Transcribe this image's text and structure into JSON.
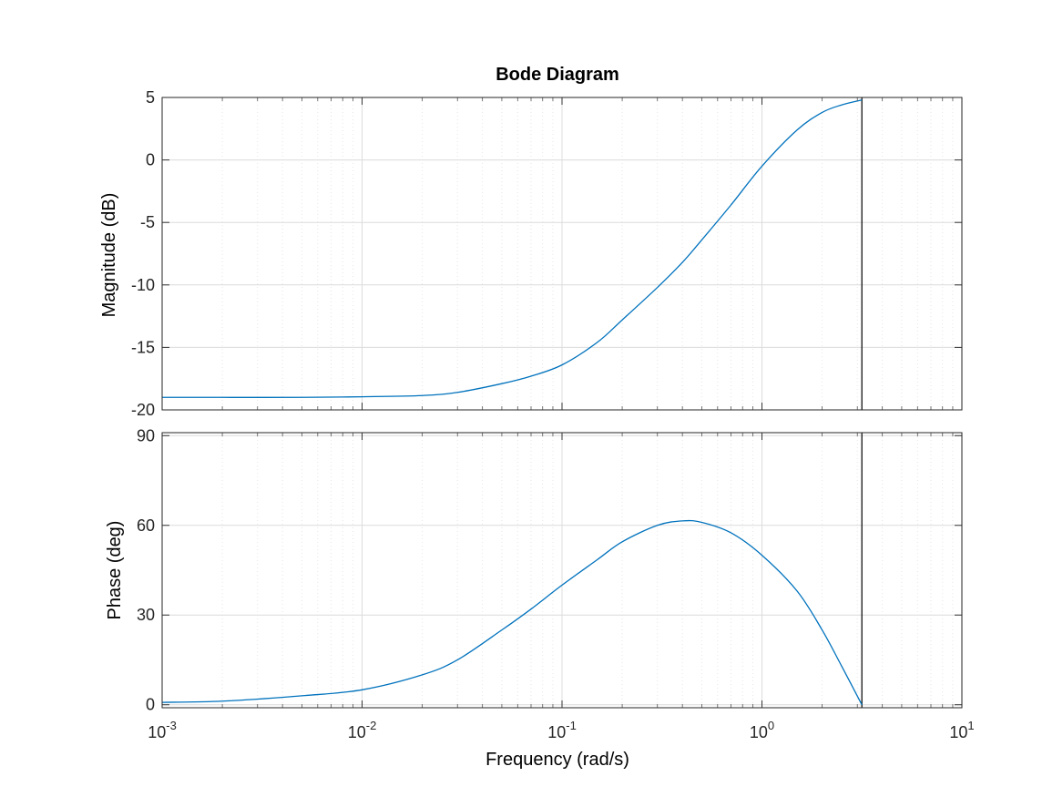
{
  "chart_data": {
    "type": "line",
    "title": "Bode Diagram",
    "xlabel": "Frequency  (rad/s)",
    "x_scale": "log",
    "xlim": [
      0.001,
      10
    ],
    "x_tick_labels": [
      {
        "base": "10",
        "exp": "-3"
      },
      {
        "base": "10",
        "exp": "-2"
      },
      {
        "base": "10",
        "exp": "-1"
      },
      {
        "base": "10",
        "exp": "0"
      },
      {
        "base": "10",
        "exp": "1"
      }
    ],
    "grid": true,
    "line_color": "#0072BD",
    "marker_line_x": 3.16,
    "panels": [
      {
        "name": "magnitude",
        "ylabel": "Magnitude (dB)",
        "ylim": [
          -20,
          5
        ],
        "yticks": [
          5,
          0,
          -5,
          -10,
          -15,
          -20
        ],
        "x": [
          0.001,
          0.002,
          0.005,
          0.01,
          0.02,
          0.03,
          0.05,
          0.07,
          0.1,
          0.15,
          0.2,
          0.3,
          0.4,
          0.5,
          0.7,
          1.0,
          1.5,
          2.0,
          2.5,
          3.16
        ],
        "y": [
          -19.0,
          -19.0,
          -19.0,
          -18.95,
          -18.85,
          -18.6,
          -17.9,
          -17.3,
          -16.4,
          -14.6,
          -12.8,
          -10.2,
          -8.2,
          -6.4,
          -3.6,
          -0.5,
          2.4,
          3.8,
          4.4,
          4.8
        ]
      },
      {
        "name": "phase",
        "ylabel": "Phase (deg)",
        "ylim": [
          -1,
          91
        ],
        "yticks": [
          90,
          60,
          30,
          0
        ],
        "x": [
          0.001,
          0.002,
          0.005,
          0.01,
          0.02,
          0.03,
          0.05,
          0.07,
          0.1,
          0.15,
          0.2,
          0.3,
          0.4,
          0.5,
          0.7,
          1.0,
          1.5,
          2.0,
          2.5,
          3.16
        ],
        "y": [
          0.8,
          1.2,
          3.0,
          5.0,
          10.0,
          15.0,
          25.0,
          32.0,
          40.0,
          48.5,
          54.5,
          60.0,
          61.5,
          61.0,
          57.5,
          50.0,
          38.0,
          25.0,
          13.0,
          0.0
        ]
      }
    ]
  }
}
